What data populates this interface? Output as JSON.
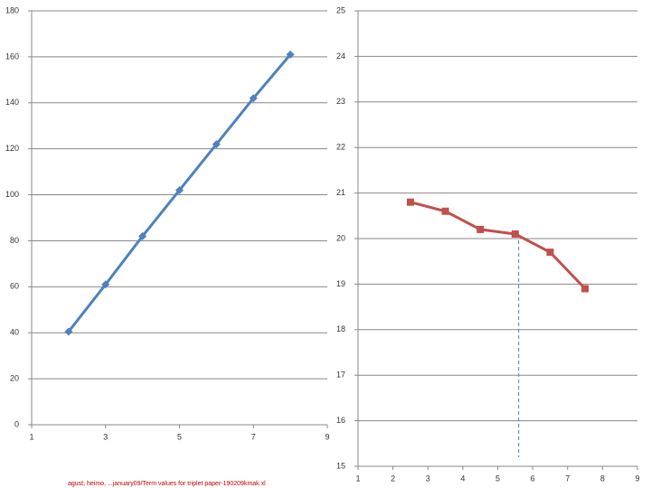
{
  "chart_data": [
    {
      "type": "line",
      "marker": "diamond",
      "series": [
        {
          "color": "#4f81bd",
          "x": [
            2,
            3,
            4,
            5,
            6,
            7,
            8
          ],
          "values": [
            40.5,
            61,
            82,
            102,
            122,
            142,
            161
          ]
        }
      ],
      "xlim": [
        1,
        9
      ],
      "xticks": [
        1,
        3,
        5,
        7,
        9
      ],
      "ylim": [
        0,
        180
      ],
      "yticks": [
        0,
        20,
        40,
        60,
        80,
        100,
        120,
        140,
        160,
        180
      ],
      "grid": true
    },
    {
      "type": "line",
      "marker": "square",
      "series": [
        {
          "color": "#c0504d",
          "x": [
            2.5,
            3.5,
            4.5,
            5.5,
            6.5,
            7.5
          ],
          "values": [
            20.8,
            20.6,
            20.2,
            20.1,
            19.7,
            18.9
          ]
        }
      ],
      "xlim": [
        1,
        9
      ],
      "xticks": [
        1,
        2,
        3,
        4,
        5,
        6,
        7,
        8,
        9
      ],
      "ylim": [
        15,
        25
      ],
      "yticks": [
        15,
        16,
        17,
        18,
        19,
        20,
        21,
        22,
        23,
        24,
        25
      ],
      "grid": true,
      "vline": {
        "x": 5.6,
        "y_range": [
          15.2,
          20.1
        ],
        "color": "#4f81bd"
      }
    }
  ],
  "footnote": "agust, heimo, ...january09/Term values for triplet paper-190209kmak.xl"
}
